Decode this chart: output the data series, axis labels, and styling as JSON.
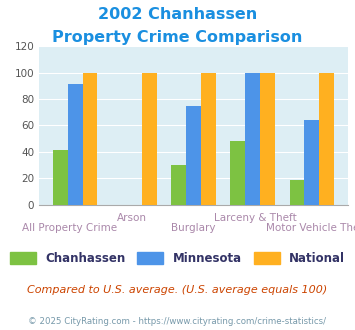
{
  "title_line1": "2002 Chanhassen",
  "title_line2": "Property Crime Comparison",
  "categories": [
    "All Property Crime",
    "Arson",
    "Burglary",
    "Larceny & Theft",
    "Motor Vehicle Theft"
  ],
  "chanhassen": [
    41,
    0,
    30,
    48,
    19
  ],
  "minnesota": [
    91,
    0,
    75,
    100,
    64
  ],
  "national": [
    100,
    100,
    100,
    100,
    100
  ],
  "color_chanhassen": "#7dc242",
  "color_minnesota": "#4d94e8",
  "color_national": "#ffb020",
  "ylim": [
    0,
    120
  ],
  "yticks": [
    0,
    20,
    40,
    60,
    80,
    100,
    120
  ],
  "plot_bg": "#ddeef4",
  "title_color": "#1a8fe0",
  "xlabel_color_top": "#aa88aa",
  "xlabel_color_bottom": "#aa88aa",
  "footer_text": "Compared to U.S. average. (U.S. average equals 100)",
  "footer_color": "#cc4400",
  "credit_text": "© 2025 CityRating.com - https://www.cityrating.com/crime-statistics/",
  "credit_color": "#7799aa",
  "legend_labels": [
    "Chanhassen",
    "Minnesota",
    "National"
  ],
  "legend_text_color": "#333366"
}
